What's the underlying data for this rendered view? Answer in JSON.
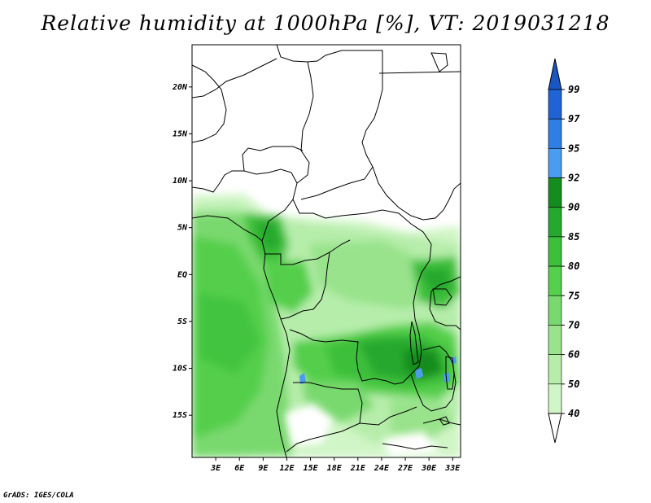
{
  "title": "Relative humidity at 1000hPa [%], VT: 2019031218",
  "credit": "GrADS: IGES/COLA",
  "map": {
    "region": "Central Africa",
    "variable": "Relative humidity",
    "level": "1000hPa",
    "units": "%",
    "valid_time": "2019031218",
    "lon_range": [
      0,
      34
    ],
    "lat_range": [
      -19.5,
      24.5
    ],
    "lat_ticks": [
      {
        "value": 20,
        "label": "20N"
      },
      {
        "value": 15,
        "label": "15N"
      },
      {
        "value": 10,
        "label": "10N"
      },
      {
        "value": 5,
        "label": "5N"
      },
      {
        "value": 0,
        "label": "EQ"
      },
      {
        "value": -5,
        "label": "5S"
      },
      {
        "value": -10,
        "label": "10S"
      },
      {
        "value": -15,
        "label": "15S"
      }
    ],
    "lon_ticks": [
      {
        "value": 3,
        "label": "3E"
      },
      {
        "value": 6,
        "label": "6E"
      },
      {
        "value": 9,
        "label": "9E"
      },
      {
        "value": 12,
        "label": "12E"
      },
      {
        "value": 15,
        "label": "15E"
      },
      {
        "value": 18,
        "label": "18E"
      },
      {
        "value": 21,
        "label": "21E"
      },
      {
        "value": 24,
        "label": "24E"
      },
      {
        "value": 27,
        "label": "27E"
      },
      {
        "value": 30,
        "label": "30E"
      },
      {
        "value": 33,
        "label": "33E"
      }
    ]
  },
  "colorbar": {
    "levels": [
      {
        "label": "99",
        "color": "#1f63d4"
      },
      {
        "label": "97",
        "color": "#2f7ee6"
      },
      {
        "label": "95",
        "color": "#4a9cf0"
      },
      {
        "label": "92",
        "color": "#148c1e"
      },
      {
        "label": "90",
        "color": "#25a82e"
      },
      {
        "label": "85",
        "color": "#3cbf3a"
      },
      {
        "label": "80",
        "color": "#55cf4c"
      },
      {
        "label": "75",
        "color": "#79d96e"
      },
      {
        "label": "70",
        "color": "#99e38c"
      },
      {
        "label": "60",
        "color": "#b6edaa"
      },
      {
        "label": "50",
        "color": "#d0f5c6"
      },
      {
        "label": "40",
        "color": "#e9fbe3"
      }
    ],
    "top_color": "#1a55c4",
    "bottom_color": "#ffffff"
  }
}
